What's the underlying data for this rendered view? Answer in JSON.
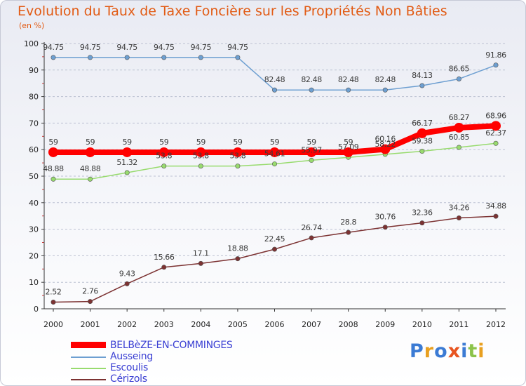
{
  "header": {
    "title": "Evolution du Taux de Taxe Foncière sur les Propriétés Non Bâties",
    "subtitle": "(en %)"
  },
  "logo": {
    "text": "Proxiti",
    "colors": [
      "#3b7bd4",
      "#e8a020",
      "#3b7bd4",
      "#e85520",
      "#3b7bd4",
      "#8bc34a",
      "#e8a020"
    ]
  },
  "legend": [
    {
      "label": "BELBèZE-EN-COMMINGES",
      "color": "#ff0000"
    },
    {
      "label": "Ausseing",
      "color": "#6d9fd1"
    },
    {
      "label": "Escoulis",
      "color": "#98db6e"
    },
    {
      "label": "Cérizols",
      "color": "#7c3232"
    }
  ],
  "chart_data": {
    "type": "line",
    "title": "Evolution du Taux de Taxe Foncière sur les Propriétés Non Bâties",
    "ylabel": "(en %)",
    "xlabel": "",
    "ylim": [
      0,
      100
    ],
    "yticks": [
      0,
      10,
      20,
      30,
      40,
      50,
      60,
      70,
      80,
      90,
      100
    ],
    "categories": [
      "2000",
      "2001",
      "2002",
      "2003",
      "2004",
      "2005",
      "2006",
      "2007",
      "2008",
      "2009",
      "2010",
      "2011",
      "2012"
    ],
    "grid": "horizontal dashed",
    "series": [
      {
        "name": "BELBèZE-EN-COMMINGES",
        "color": "#ff0000",
        "emphasis": true,
        "values": [
          59,
          59,
          59,
          59,
          59,
          59,
          59,
          59,
          59,
          60.16,
          66.17,
          68.27,
          68.96
        ],
        "labels": [
          "59",
          "59",
          "59",
          "59",
          "59",
          "59",
          "59",
          "59",
          "59",
          "60.16",
          "66.17",
          "68.27",
          "68.96"
        ]
      },
      {
        "name": "Ausseing",
        "color": "#6d9fd1",
        "values": [
          94.75,
          94.75,
          94.75,
          94.75,
          94.75,
          94.75,
          82.48,
          82.48,
          82.48,
          82.48,
          84.13,
          86.65,
          91.86
        ],
        "labels": [
          "94.75",
          "94.75",
          "94.75",
          "94.75",
          "94.75",
          "94.75",
          "82.48",
          "82.48",
          "82.48",
          "82.48",
          "84.13",
          "86.65",
          "91.86"
        ]
      },
      {
        "name": "Escoulis",
        "color": "#98db6e",
        "values": [
          48.88,
          48.88,
          51.32,
          53.8,
          53.8,
          53.8,
          54.61,
          55.97,
          57.09,
          58.22,
          59.38,
          60.85,
          62.37
        ],
        "labels": [
          "48.88",
          "48.88",
          "51.32",
          "53.8",
          "53.8",
          "53.8",
          "54.61",
          "55.97",
          "57.09",
          "58.22",
          "59.38",
          "60.85",
          "62.37"
        ]
      },
      {
        "name": "Cérizols",
        "color": "#7c3232",
        "values": [
          2.52,
          2.76,
          9.43,
          15.66,
          17.1,
          18.88,
          22.45,
          26.74,
          28.8,
          30.76,
          32.36,
          34.26,
          34.88
        ],
        "labels": [
          "2.52",
          "2.76",
          "9.43",
          "15.66",
          "17.1",
          "18.88",
          "22.45",
          "26.74",
          "28.8",
          "30.76",
          "32.36",
          "34.26",
          "34.88"
        ]
      }
    ]
  }
}
